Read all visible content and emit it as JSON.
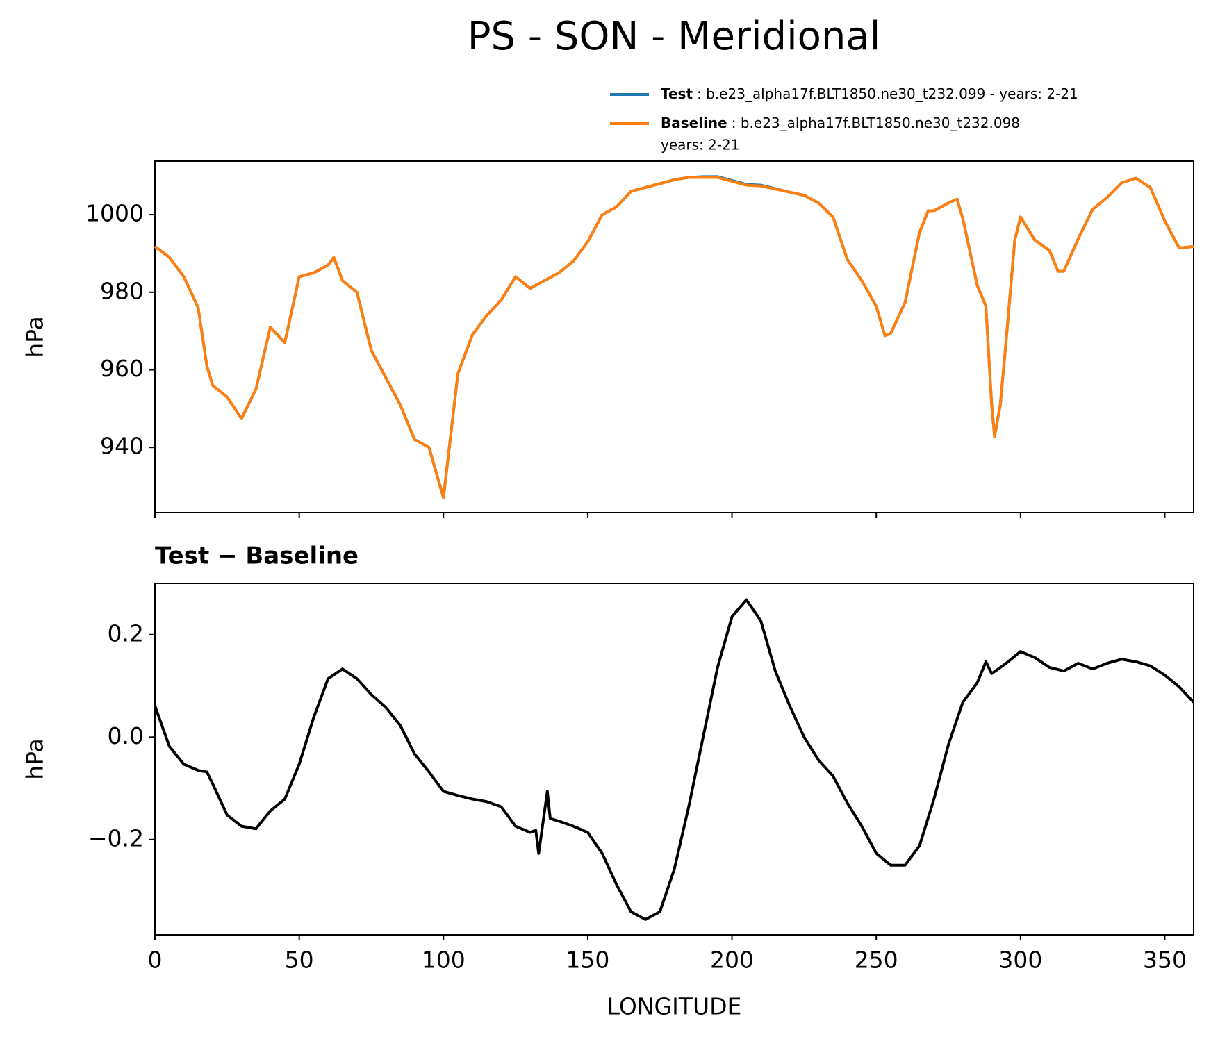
{
  "title": "PS - SON - Meridional",
  "chart_data": [
    {
      "type": "line",
      "ylabel": "hPa",
      "x": [
        0,
        5,
        10,
        15,
        18,
        20,
        25,
        30,
        35,
        40,
        45,
        50,
        55,
        60,
        62,
        65,
        70,
        75,
        80,
        85,
        90,
        95,
        100,
        105,
        110,
        115,
        120,
        125,
        130,
        135,
        140,
        145,
        150,
        155,
        160,
        165,
        170,
        175,
        180,
        185,
        190,
        195,
        200,
        205,
        210,
        215,
        220,
        225,
        230,
        235,
        240,
        245,
        250,
        253,
        255,
        260,
        265,
        268,
        270,
        275,
        278,
        280,
        285,
        288,
        290,
        291,
        293,
        295,
        298,
        300,
        305,
        310,
        313,
        315,
        320,
        325,
        330,
        335,
        340,
        345,
        350,
        355,
        360
      ],
      "series": [
        {
          "name": "Test",
          "description": [
            ": b.e23_alpha17f.BLT1850.ne30_t232.099 - years: 2-21"
          ],
          "color": "#1f77b4",
          "values": [
            991.8,
            989,
            984,
            976,
            961,
            956,
            953,
            947.4,
            955,
            971,
            967,
            984,
            985,
            987,
            989,
            983,
            980,
            965,
            958,
            951,
            942,
            940,
            927,
            959,
            969,
            974,
            978,
            984,
            981,
            983,
            985,
            988,
            993,
            1000,
            1002,
            1006,
            1007,
            1008,
            1009,
            1009.6,
            1009.8,
            1009.8,
            1008.8,
            1007.8,
            1007.6,
            1006.7,
            1005.8,
            1005,
            1003,
            999.4,
            988.4,
            983,
            976.4,
            968.8,
            969.4,
            977.4,
            995.4,
            1001,
            1001,
            1003,
            1004,
            999,
            981.8,
            976.4,
            951,
            942.8,
            951,
            967.4,
            993.4,
            999.4,
            993.4,
            990.8,
            985.4,
            985.4,
            993.8,
            1001.4,
            1004.4,
            1008.2,
            1009.4,
            1007,
            998.4,
            991.4,
            991.8
          ]
        },
        {
          "name": "Baseline",
          "description": [
            ": b.e23_alpha17f.BLT1850.ne30_t232.098",
            "years: 2-21"
          ],
          "color": "#ff7f0e",
          "values": [
            991.8,
            989,
            984,
            976,
            961,
            956,
            953,
            947.4,
            955,
            971,
            967,
            984,
            985,
            987,
            989,
            983,
            980,
            965,
            958,
            951,
            942,
            940,
            927,
            959,
            969,
            974,
            978,
            984,
            981,
            983,
            985,
            988,
            993,
            1000,
            1002,
            1006,
            1007,
            1008,
            1009,
            1009.6,
            1009.6,
            1009.6,
            1008.6,
            1007.6,
            1007.4,
            1006.6,
            1005.8,
            1005,
            1003,
            999.4,
            988.4,
            983,
            976.4,
            968.8,
            969.4,
            977.4,
            995.4,
            1001,
            1001,
            1003,
            1004,
            999,
            981.8,
            976.4,
            951,
            942.8,
            951,
            967.4,
            993.4,
            999.4,
            993.4,
            990.8,
            985.4,
            985.4,
            993.8,
            1001.4,
            1004.4,
            1008.2,
            1009.4,
            1007,
            998.4,
            991.4,
            991.8
          ]
        }
      ],
      "xlim": [
        0,
        360
      ],
      "xticks": [
        0,
        50,
        100,
        150,
        200,
        250,
        300,
        350
      ],
      "ylim": [
        923.2,
        1013.8
      ],
      "yticks": [
        940,
        960,
        980,
        1000
      ]
    },
    {
      "type": "line",
      "title": "Test − Baseline",
      "ylabel": "hPa",
      "xlabel": "LONGITUDE",
      "x": [
        0,
        5,
        10,
        15,
        18,
        20,
        25,
        30,
        35,
        40,
        45,
        50,
        55,
        60,
        65,
        70,
        75,
        80,
        85,
        90,
        95,
        100,
        105,
        110,
        115,
        120,
        125,
        130,
        132,
        133,
        136,
        137,
        140,
        145,
        150,
        155,
        160,
        165,
        170,
        175,
        180,
        185,
        190,
        195,
        200,
        205,
        210,
        215,
        220,
        225,
        230,
        235,
        240,
        245,
        250,
        255,
        260,
        265,
        270,
        275,
        280,
        285,
        288,
        290,
        295,
        300,
        305,
        310,
        315,
        320,
        325,
        330,
        335,
        340,
        345,
        350,
        355,
        360
      ],
      "series": [
        {
          "name": "Test − Baseline",
          "color": "#000000",
          "values": [
            0.061,
            -0.018,
            -0.053,
            -0.065,
            -0.068,
            -0.091,
            -0.152,
            -0.174,
            -0.179,
            -0.144,
            -0.121,
            -0.053,
            0.038,
            0.114,
            0.133,
            0.114,
            0.083,
            0.058,
            0.023,
            -0.033,
            -0.068,
            -0.106,
            -0.114,
            -0.121,
            -0.126,
            -0.136,
            -0.174,
            -0.186,
            -0.182,
            -0.227,
            -0.106,
            -0.159,
            -0.164,
            -0.174,
            -0.186,
            -0.227,
            -0.288,
            -0.341,
            -0.356,
            -0.341,
            -0.258,
            -0.136,
            0.0,
            0.136,
            0.235,
            0.268,
            0.227,
            0.129,
            0.061,
            0.0,
            -0.045,
            -0.076,
            -0.129,
            -0.174,
            -0.227,
            -0.25,
            -0.25,
            -0.212,
            -0.121,
            -0.015,
            0.068,
            0.106,
            0.147,
            0.124,
            0.144,
            0.167,
            0.155,
            0.136,
            0.129,
            0.144,
            0.133,
            0.144,
            0.152,
            0.147,
            0.139,
            0.121,
            0.098,
            0.068
          ]
        }
      ],
      "xlim": [
        0,
        360
      ],
      "xticks": [
        0,
        50,
        100,
        150,
        200,
        250,
        300,
        350
      ],
      "ylim": [
        -0.386,
        0.3
      ],
      "yticks": [
        {
          "value": -0.2,
          "label": "−0.2"
        },
        {
          "value": 0.0,
          "label": "0.0"
        },
        0.2
      ]
    }
  ]
}
